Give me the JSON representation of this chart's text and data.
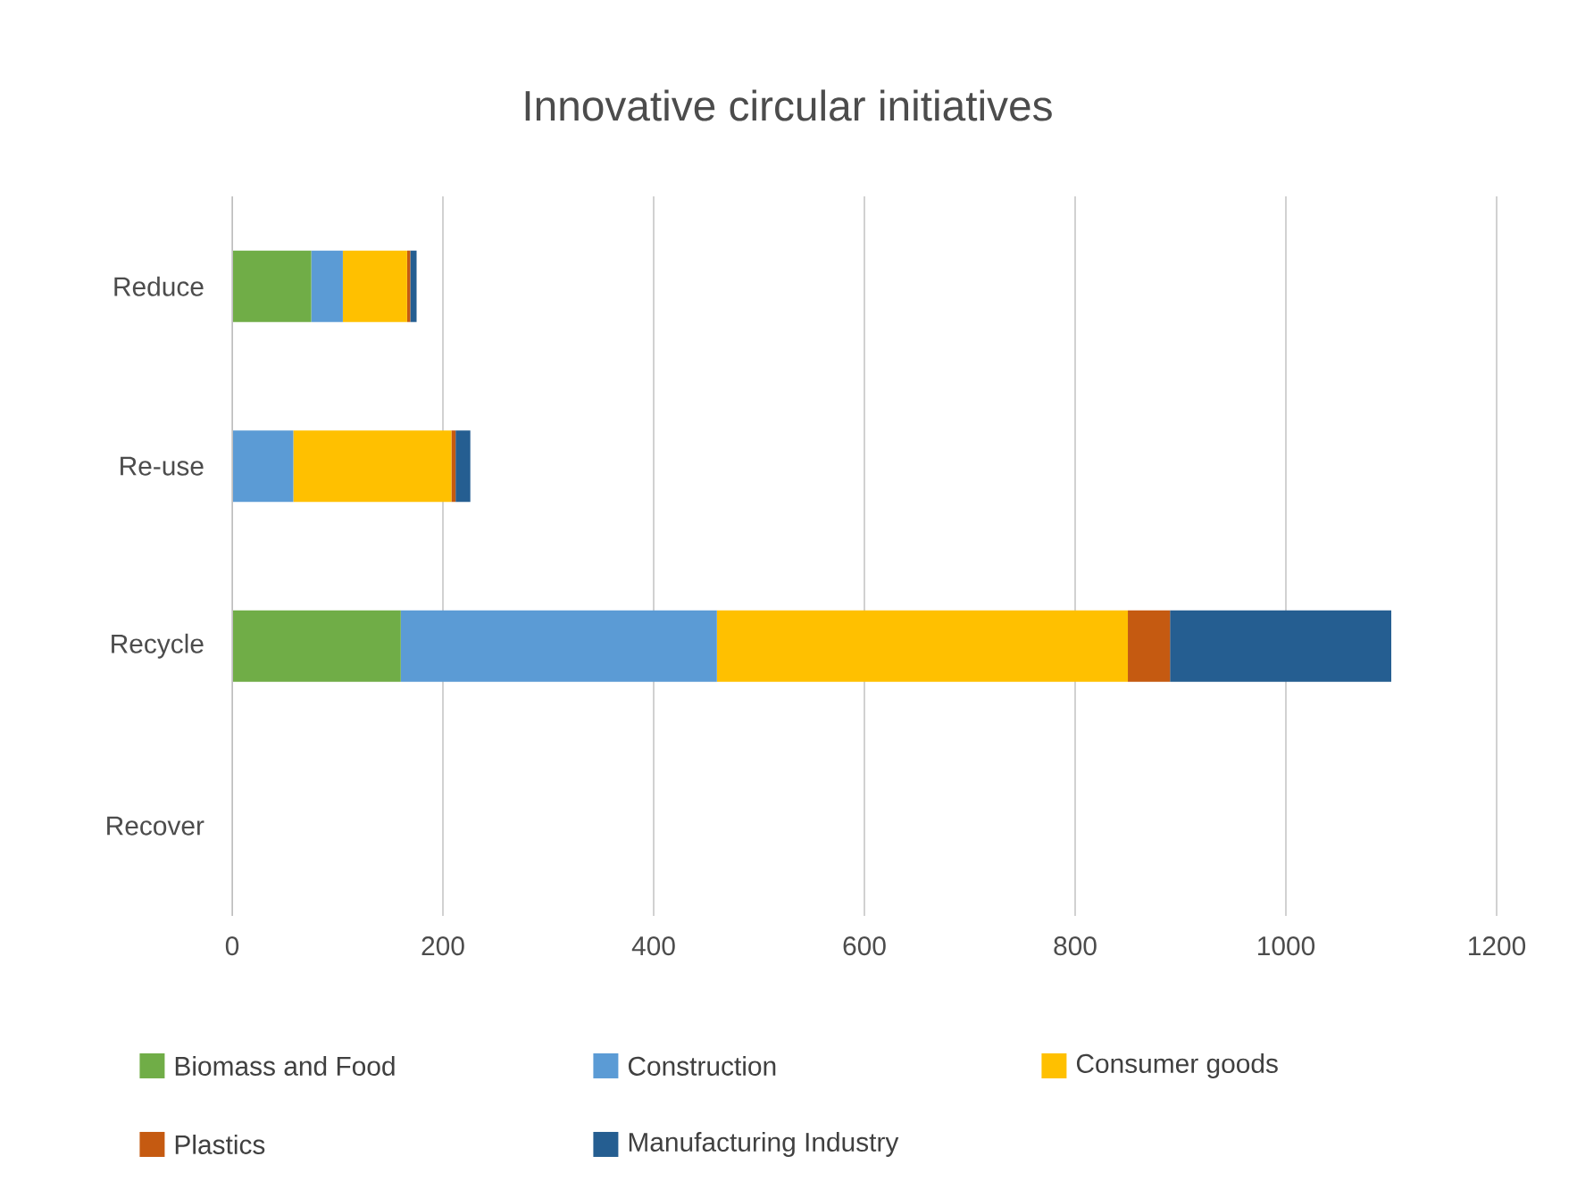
{
  "chart_data": {
    "type": "bar",
    "orientation": "horizontal",
    "stacked": true,
    "title": "Innovative circular initiatives",
    "categories": [
      "Reduce",
      "Re-use",
      "Recycle",
      "Recover"
    ],
    "series": [
      {
        "name": "Biomass and Food",
        "color": "#70ad47",
        "values": [
          75,
          0,
          160,
          0
        ]
      },
      {
        "name": "Construction",
        "color": "#5b9bd5",
        "values": [
          30,
          58,
          300,
          0
        ]
      },
      {
        "name": "Consumer goods",
        "color": "#ffc000",
        "values": [
          61,
          150,
          390,
          0
        ]
      },
      {
        "name": "Plastics",
        "color": "#c55a11",
        "values": [
          3,
          4,
          40,
          0
        ]
      },
      {
        "name": "Manufacturing Industry",
        "color": "#255e91",
        "values": [
          6,
          14,
          210,
          0
        ]
      }
    ],
    "xlim": [
      0,
      1200
    ],
    "xticks": [
      0,
      200,
      400,
      600,
      800,
      1000,
      1200
    ],
    "grid": "x",
    "legend": "bottom"
  }
}
